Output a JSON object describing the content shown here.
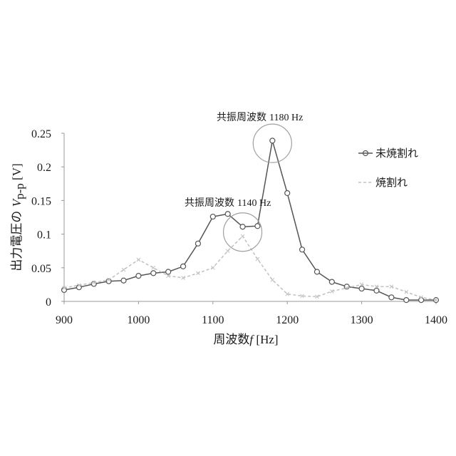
{
  "chart_data": {
    "type": "line",
    "xlabel": {
      "prefix": "周波数",
      "var": "f",
      "unit": " [Hz]"
    },
    "ylabel": {
      "prefix": "出力電圧の ",
      "var": "V",
      "sub": "p-p",
      "unit": " [V]"
    },
    "xlim": [
      900,
      1400
    ],
    "ylim": [
      0,
      0.25
    ],
    "xticks": [
      900,
      1000,
      1100,
      1200,
      1300,
      1400
    ],
    "yticks": [
      0,
      0.05,
      0.1,
      0.15,
      0.2,
      0.25
    ],
    "xtick_labels": [
      "900",
      "1000",
      "1100",
      "1200",
      "1300",
      "1400"
    ],
    "ytick_labels": [
      "0",
      "0.05",
      "0.1",
      "0.15",
      "0.2",
      "0.25"
    ],
    "grid": false,
    "legend_position": "right",
    "series": [
      {
        "name": "未焼割れ",
        "color": "#555555",
        "marker": "circle",
        "dashed": false,
        "x": [
          900,
          920,
          940,
          960,
          980,
          1000,
          1020,
          1040,
          1060,
          1080,
          1100,
          1120,
          1140,
          1160,
          1180,
          1200,
          1220,
          1240,
          1260,
          1280,
          1300,
          1320,
          1340,
          1360,
          1380,
          1400
        ],
        "values": [
          0.017,
          0.021,
          0.026,
          0.03,
          0.031,
          0.038,
          0.042,
          0.044,
          0.052,
          0.086,
          0.126,
          0.13,
          0.111,
          0.112,
          0.239,
          0.161,
          0.077,
          0.044,
          0.029,
          0.022,
          0.019,
          0.016,
          0.006,
          0.002,
          0.002,
          0.002
        ]
      },
      {
        "name": "焼割れ",
        "color": "#c0c0c0",
        "marker": "cross",
        "dashed": true,
        "x": [
          900,
          920,
          940,
          960,
          980,
          1000,
          1020,
          1040,
          1060,
          1080,
          1100,
          1120,
          1140,
          1160,
          1180,
          1200,
          1220,
          1240,
          1260,
          1280,
          1300,
          1320,
          1340,
          1360,
          1380,
          1400
        ],
        "values": [
          0.02,
          0.024,
          0.028,
          0.032,
          0.047,
          0.062,
          0.05,
          0.038,
          0.035,
          0.042,
          0.05,
          0.075,
          0.097,
          0.063,
          0.032,
          0.011,
          0.008,
          0.007,
          0.015,
          0.02,
          0.025,
          0.022,
          0.022,
          0.014,
          0.006,
          0.002
        ]
      }
    ],
    "annotations": [
      {
        "id": "peak1180",
        "prefix": "共振周波数",
        "value": "1180 Hz",
        "center_x": 1180,
        "center_y": 0.235
      },
      {
        "id": "peak1140",
        "prefix": "共振周波数",
        "value": "1140 Hz",
        "center_x": 1140,
        "center_y": 0.103
      }
    ]
  }
}
